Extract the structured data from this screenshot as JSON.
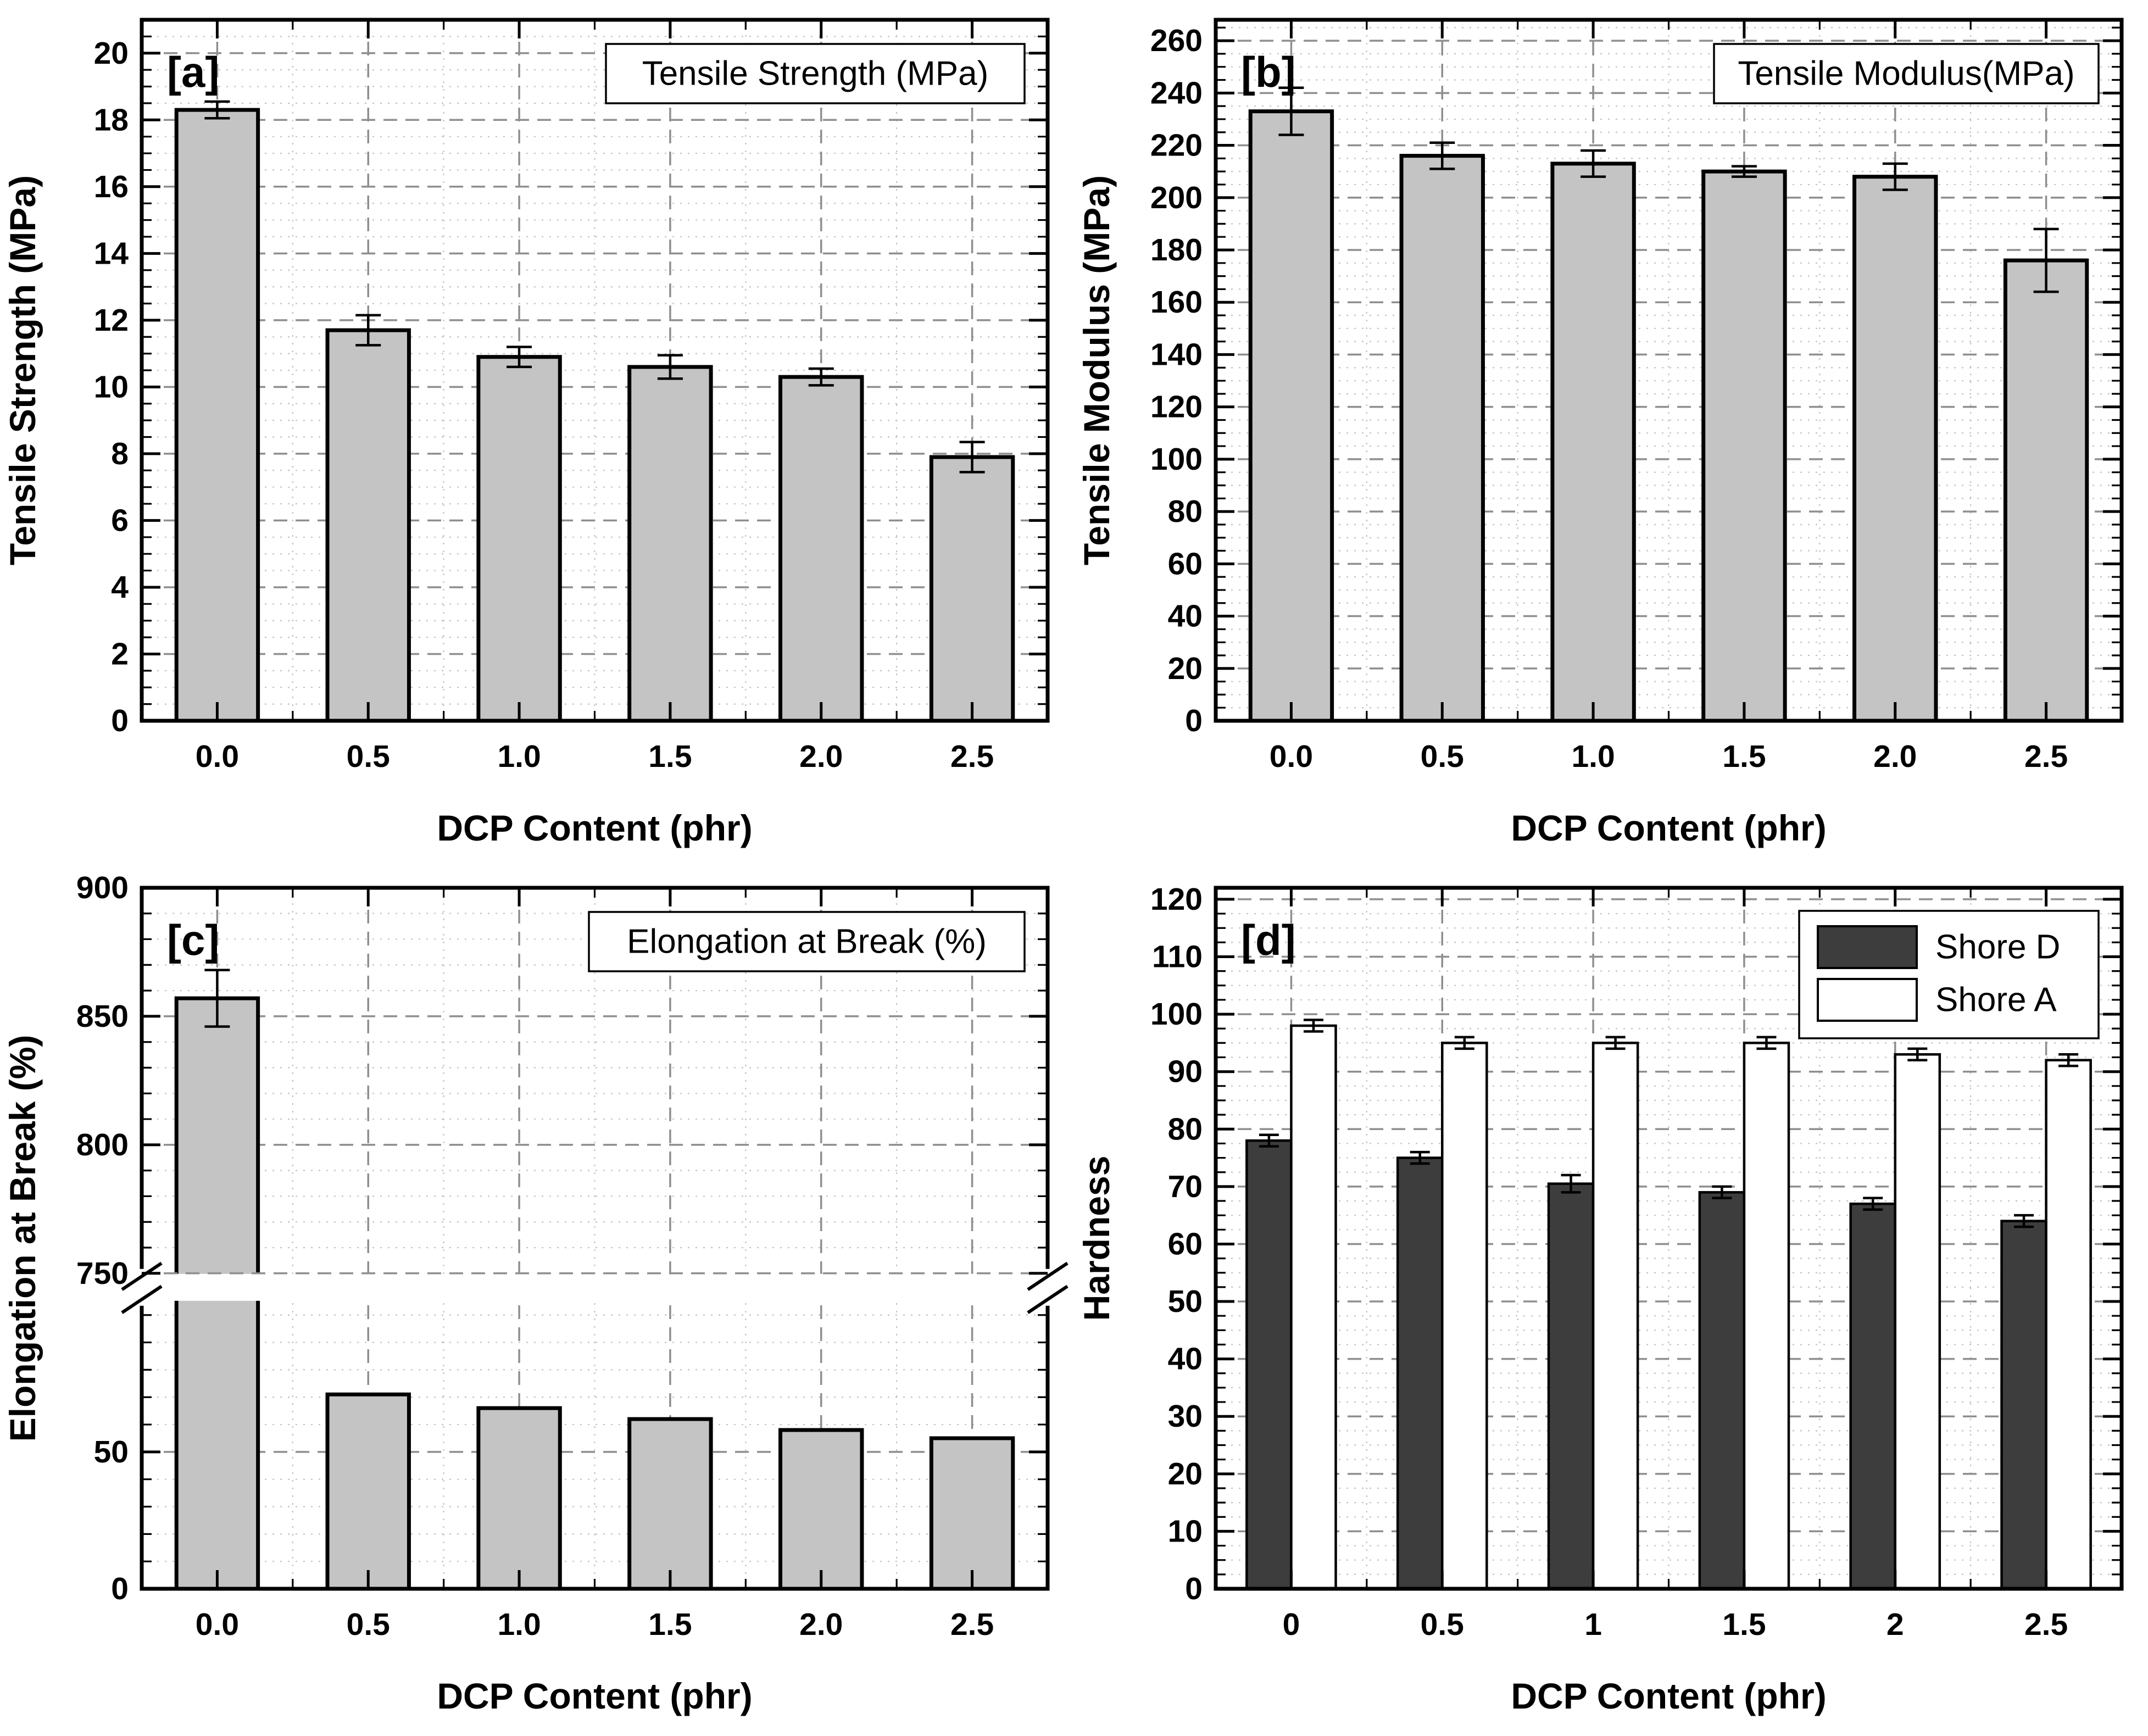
{
  "styles": {
    "background": "#ffffff",
    "bar_fill": "#c4c4c4",
    "axis_color": "#000000",
    "grid_major_color": "#8f8f8f",
    "grid_minor_color": "#c2c2c2",
    "error_bar_color": "#000000",
    "shore_d_color": "#3d3d3d",
    "shore_a_color": "#ffffff"
  },
  "chart_data": [
    {
      "id": "a",
      "type": "bar",
      "panel_label": "[a]",
      "title_box": "Tensile Strength (MPa)",
      "xlabel": "DCP Content (phr)",
      "ylabel": "Tensile Strength (MPa)",
      "categories": [
        "0.0",
        "0.5",
        "1.0",
        "1.5",
        "2.0",
        "2.5"
      ],
      "values": [
        18.3,
        11.7,
        10.9,
        10.6,
        10.3,
        7.9
      ],
      "errors": [
        0.25,
        0.45,
        0.3,
        0.35,
        0.25,
        0.45
      ],
      "ylim": [
        0,
        21
      ],
      "y_major": 2,
      "y_minor": 0.5,
      "grid": "on",
      "legend_position": "top-right"
    },
    {
      "id": "b",
      "type": "bar",
      "panel_label": "[b]",
      "title_box": "Tensile Modulus(MPa)",
      "xlabel": "DCP Content (phr)",
      "ylabel": "Tensile Modulus (MPa)",
      "categories": [
        "0.0",
        "0.5",
        "1.0",
        "1.5",
        "2.0",
        "2.5"
      ],
      "values": [
        233,
        216,
        213,
        210,
        208,
        176
      ],
      "errors": [
        9,
        5,
        5,
        2,
        5,
        12
      ],
      "ylim": [
        0,
        268
      ],
      "y_major": 20,
      "y_minor": 5,
      "grid": "on",
      "legend_position": "top-right"
    },
    {
      "id": "c",
      "type": "bar",
      "panel_label": "[c]",
      "title_box": "Elongation at Break (%)",
      "xlabel": "DCP Content (phr)",
      "ylabel": "Elongation at Break (%)",
      "categories": [
        "0.0",
        "0.5",
        "1.0",
        "1.5",
        "2.0",
        "2.5"
      ],
      "values": [
        857,
        71,
        66,
        62,
        58,
        55
      ],
      "errors": [
        11,
        0,
        0,
        0,
        0,
        0
      ],
      "broken_axis": {
        "lower_range": [
          0,
          105
        ],
        "upper_range": [
          750,
          900
        ],
        "lower_frac": 0.41,
        "gap_frac": 0.04,
        "upper_frac": 0.55,
        "lower_majors": [
          0,
          50
        ],
        "upper_majors": [
          750,
          800,
          850,
          900
        ],
        "minor_step": 10
      },
      "grid": "on",
      "legend_position": "top-right"
    },
    {
      "id": "d",
      "type": "grouped-bar",
      "panel_label": "[d]",
      "xlabel": "DCP Content (phr)",
      "ylabel": "Hardness",
      "categories": [
        "0",
        "0.5",
        "1",
        "1.5",
        "2",
        "2.5"
      ],
      "series": [
        {
          "name": "Shore D",
          "color": "#3d3d3d",
          "values": [
            78,
            75,
            70.5,
            69,
            67,
            64
          ],
          "errors": [
            1,
            1,
            1.5,
            1,
            1,
            1
          ]
        },
        {
          "name": "Shore A",
          "color": "#ffffff",
          "values": [
            98,
            95,
            95,
            95,
            93,
            92
          ],
          "errors": [
            1,
            1,
            1,
            1,
            1,
            1
          ]
        }
      ],
      "ylim": [
        0,
        122
      ],
      "y_major": 10,
      "y_minor": 2.5,
      "grid": "on",
      "legend": [
        "Shore D",
        "Shore A"
      ],
      "legend_position": "top-right"
    }
  ]
}
